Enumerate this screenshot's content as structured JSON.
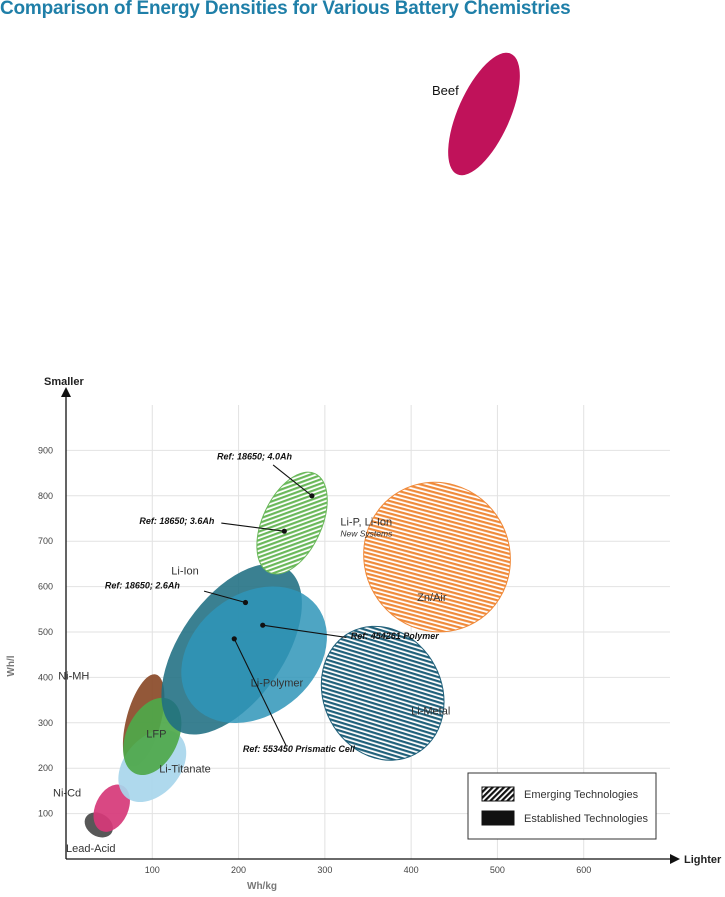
{
  "chart_data": {
    "type": "scatter",
    "title": "Comparison of Energy Densities for Various  Battery Chemistries",
    "xlabel": "Wh/kg",
    "ylabel": "Wh/l",
    "x_arrow_label": "Lighter",
    "y_arrow_label": "Smaller",
    "xlim": [
      0,
      700
    ],
    "ylim": [
      0,
      1000
    ],
    "x_ticks": [
      100,
      200,
      300,
      400,
      500,
      600
    ],
    "y_ticks": [
      100,
      200,
      300,
      400,
      500,
      600,
      700,
      800,
      900
    ],
    "grid": true,
    "colors": {
      "title": "#1f7fa8",
      "beef": "#c0125a",
      "lead_acid": "#4a4a4a",
      "nicd": "#d63878",
      "nimh": "#8a4a28",
      "lfp": "#4ea84a",
      "li_titanate": "#a8d6ec",
      "li_ion": "#1f6e82",
      "li_polymer": "#2f95b8",
      "li_metal": "#20607a",
      "zn_air": "#f08a3a",
      "lip_new": "#6ab85a"
    },
    "regions": [
      {
        "name": "Lead-Acid",
        "label": "Lead-Acid",
        "cx": 38,
        "cy": 75,
        "w": 35,
        "h": 50,
        "tilt": 32,
        "style": "solid",
        "color": "#4a4a4a"
      },
      {
        "name": "Ni-Cd",
        "label": "Ni-Cd",
        "cx": 53,
        "cy": 112,
        "w": 38,
        "h": 110,
        "tilt": 25,
        "style": "solid",
        "color": "#d63878"
      },
      {
        "name": "Ni-MH",
        "label": "Ni-MH",
        "cx": 90,
        "cy": 305,
        "w": 40,
        "h": 210,
        "tilt": 15,
        "style": "solid",
        "color": "#8a4a28"
      },
      {
        "name": "Li-Titanate",
        "label": "Li-Titanate",
        "cx": 100,
        "cy": 205,
        "w": 65,
        "h": 180,
        "tilt": 40,
        "style": "solid",
        "color": "#a8d6ec"
      },
      {
        "name": "LFP",
        "label": "LFP",
        "cx": 100,
        "cy": 270,
        "w": 60,
        "h": 180,
        "tilt": 25,
        "style": "solid",
        "color": "#4ea84a"
      },
      {
        "name": "Li-Ion",
        "label": "Li-Ion",
        "cx": 192,
        "cy": 462,
        "w": 120,
        "h": 430,
        "tilt": 35,
        "style": "solid",
        "color": "#1f6e82"
      },
      {
        "name": "Li-Polymer",
        "label": "Li-Polymer",
        "cx": 218,
        "cy": 450,
        "w": 140,
        "h": 350,
        "tilt": 52,
        "style": "solid",
        "color": "#2f95b8"
      },
      {
        "name": "Li-Metal",
        "label": "Li-Metal",
        "cx": 367,
        "cy": 365,
        "w": 160,
        "h": 260,
        "tilt": 62,
        "style": "hatched",
        "color": "#20607a"
      },
      {
        "name": "Zn/Air",
        "label": "Zn/Air",
        "cx": 430,
        "cy": 665,
        "w": 175,
        "h": 320,
        "tilt": 60,
        "style": "hatched",
        "color": "#f08a3a"
      },
      {
        "name": "Li-P, Li-Ion",
        "label": "Li-P, Li-Ion",
        "sublabel": "New Systems",
        "cx": 262,
        "cy": 740,
        "w": 68,
        "h": 240,
        "tilt": 25,
        "style": "hatched",
        "color": "#6ab85a"
      }
    ],
    "references": [
      {
        "label": "Ref: 18650; 4.0Ah",
        "x": 285,
        "y": 800
      },
      {
        "label": "Ref: 18650; 3.6Ah",
        "x": 253,
        "y": 722
      },
      {
        "label": "Ref: 18650; 2.6Ah",
        "x": 208,
        "y": 565
      },
      {
        "label": "Ref: 454261 Polymer",
        "x": 228,
        "y": 515
      },
      {
        "label": "Ref: 553450 Prismatic Cell",
        "x": 195,
        "y": 485
      }
    ],
    "legend": {
      "position": "bottom-right",
      "items": [
        {
          "label": "Emerging Technologies",
          "style": "hatched"
        },
        {
          "label": "Established Technologies",
          "style": "solid"
        }
      ]
    },
    "annotation": {
      "label": "Beef"
    }
  }
}
